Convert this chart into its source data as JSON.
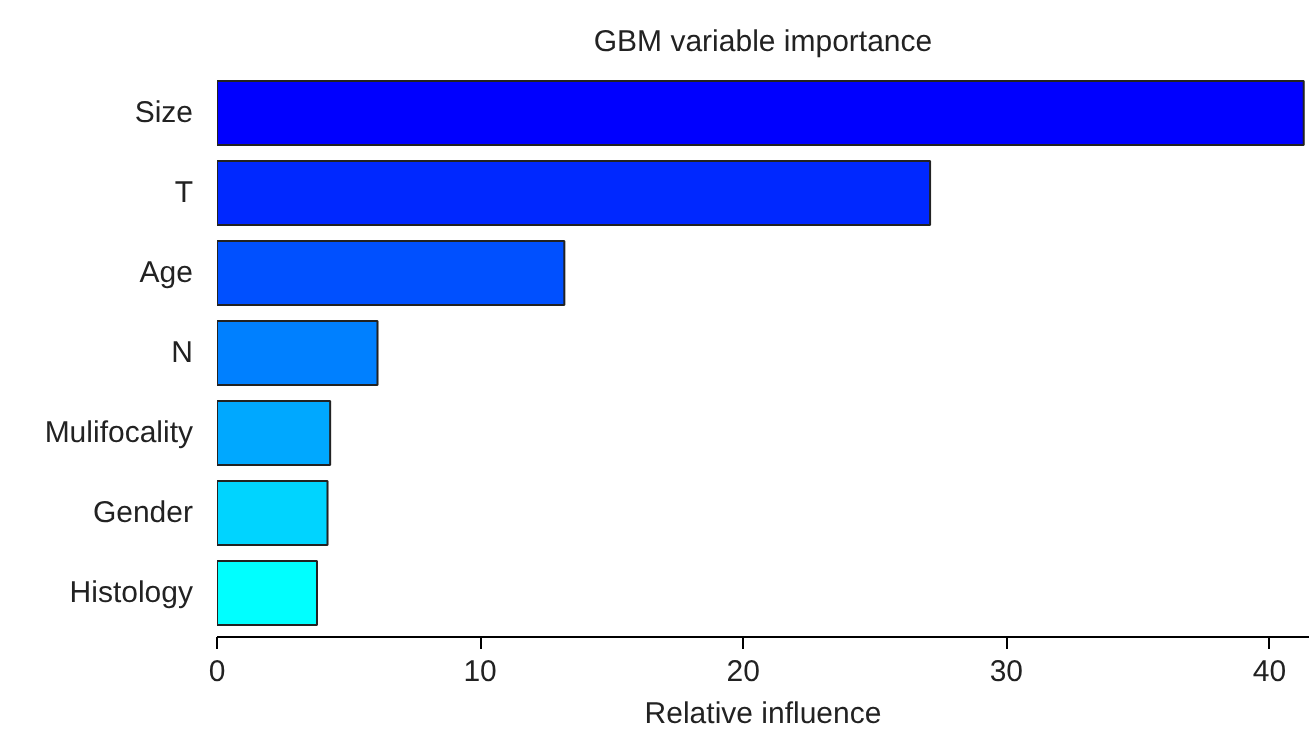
{
  "chart_data": {
    "type": "bar",
    "orientation": "horizontal",
    "title": "GBM variable importance",
    "xlabel": "Relative influence",
    "categories": [
      "Size",
      "T",
      "Age",
      "N",
      "Mulifocality",
      "Gender",
      "Histology"
    ],
    "values": [
      41.3,
      27.1,
      13.2,
      6.1,
      4.3,
      4.2,
      3.8
    ],
    "colors": [
      "#0000ff",
      "#0028ff",
      "#0050ff",
      "#0080ff",
      "#00a8ff",
      "#00d4ff",
      "#00ffff"
    ],
    "xlim": [
      0,
      41.5
    ],
    "xticks": [
      0,
      10,
      20,
      30,
      40
    ],
    "grid": false
  }
}
